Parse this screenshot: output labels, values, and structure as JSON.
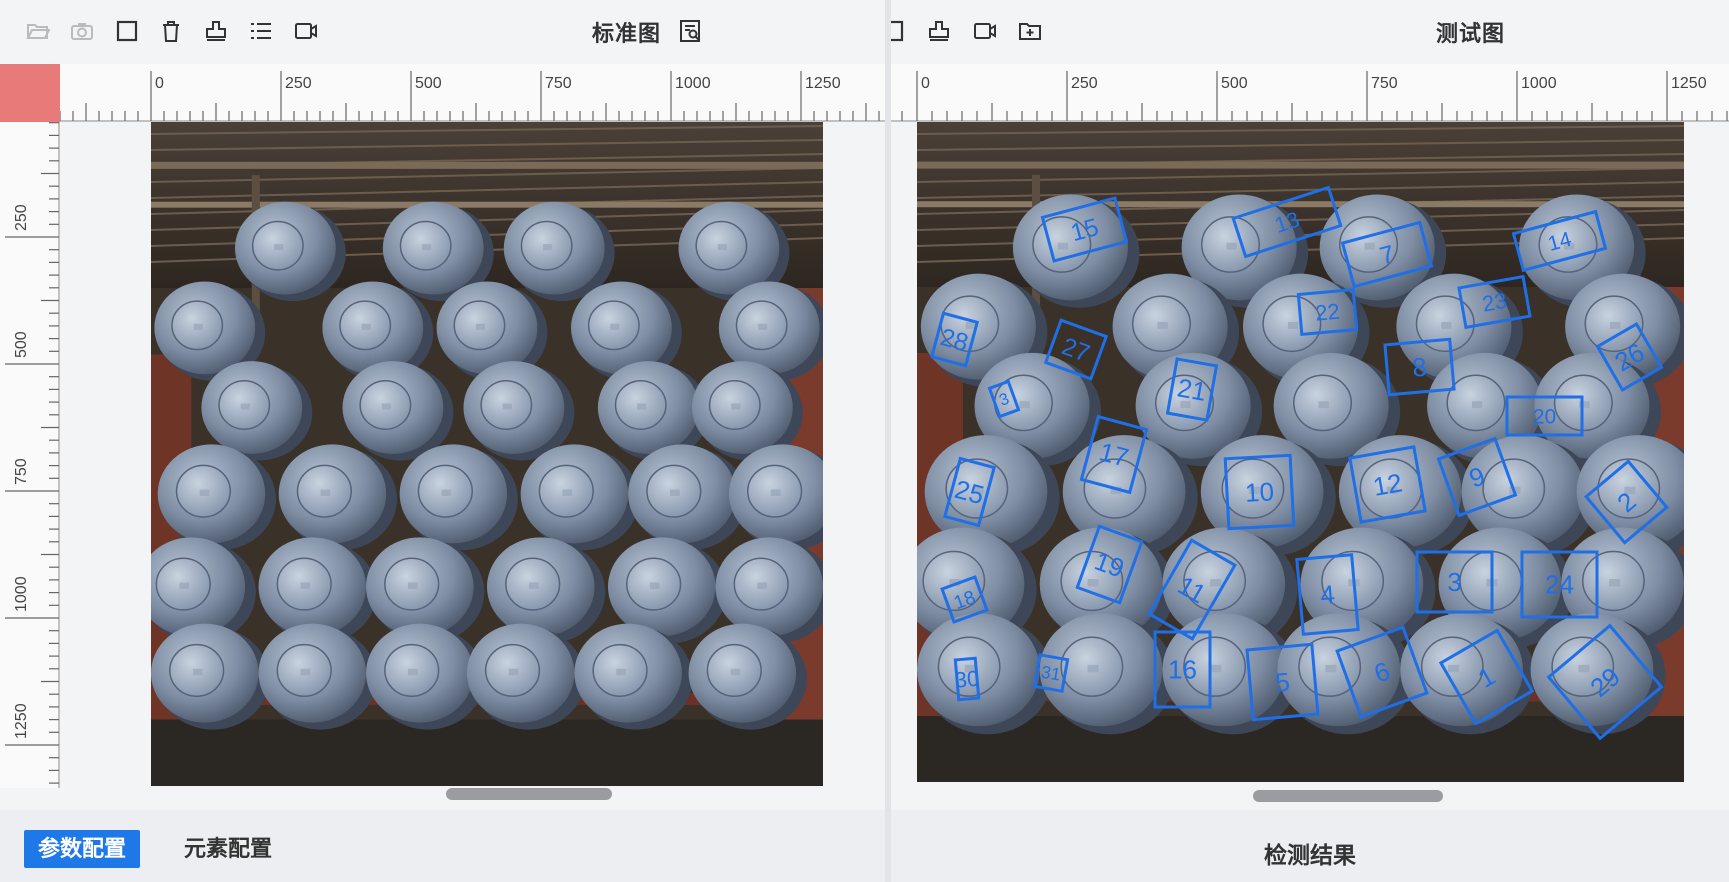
{
  "left_panel": {
    "title": "标准图",
    "toolbar_icons": [
      "folder-open-icon",
      "camera-icon",
      "square-icon",
      "trash-icon",
      "stamp-icon",
      "list-icon",
      "video-icon"
    ],
    "ruler_x_labels": [
      "0",
      "250",
      "500",
      "750",
      "1000",
      "1250"
    ],
    "ruler_y_labels": [
      "250",
      "500",
      "750",
      "1000",
      "1250"
    ],
    "corner_color": "#e97a7a",
    "tabs": [
      "参数配置",
      "元素配置"
    ]
  },
  "right_panel": {
    "title": "测试图",
    "toolbar_icons": [
      "square-icon",
      "stamp-icon",
      "video-icon",
      "folder-add-icon"
    ],
    "ruler_x_labels": [
      "0",
      "250",
      "500",
      "750",
      "1000",
      "1250"
    ],
    "detection_labels": [
      "15",
      "13",
      "7",
      "14",
      "28",
      "27",
      "22",
      "23",
      "26",
      "21",
      "8",
      "3",
      "20",
      "17",
      "10",
      "12",
      "9",
      "2",
      "25",
      "19",
      "11",
      "4",
      "3",
      "24",
      "18",
      "16",
      "5",
      "6",
      "1",
      "29",
      "30",
      "31"
    ],
    "footer_title": "检测结果",
    "box_color": "#1f6fe6"
  }
}
